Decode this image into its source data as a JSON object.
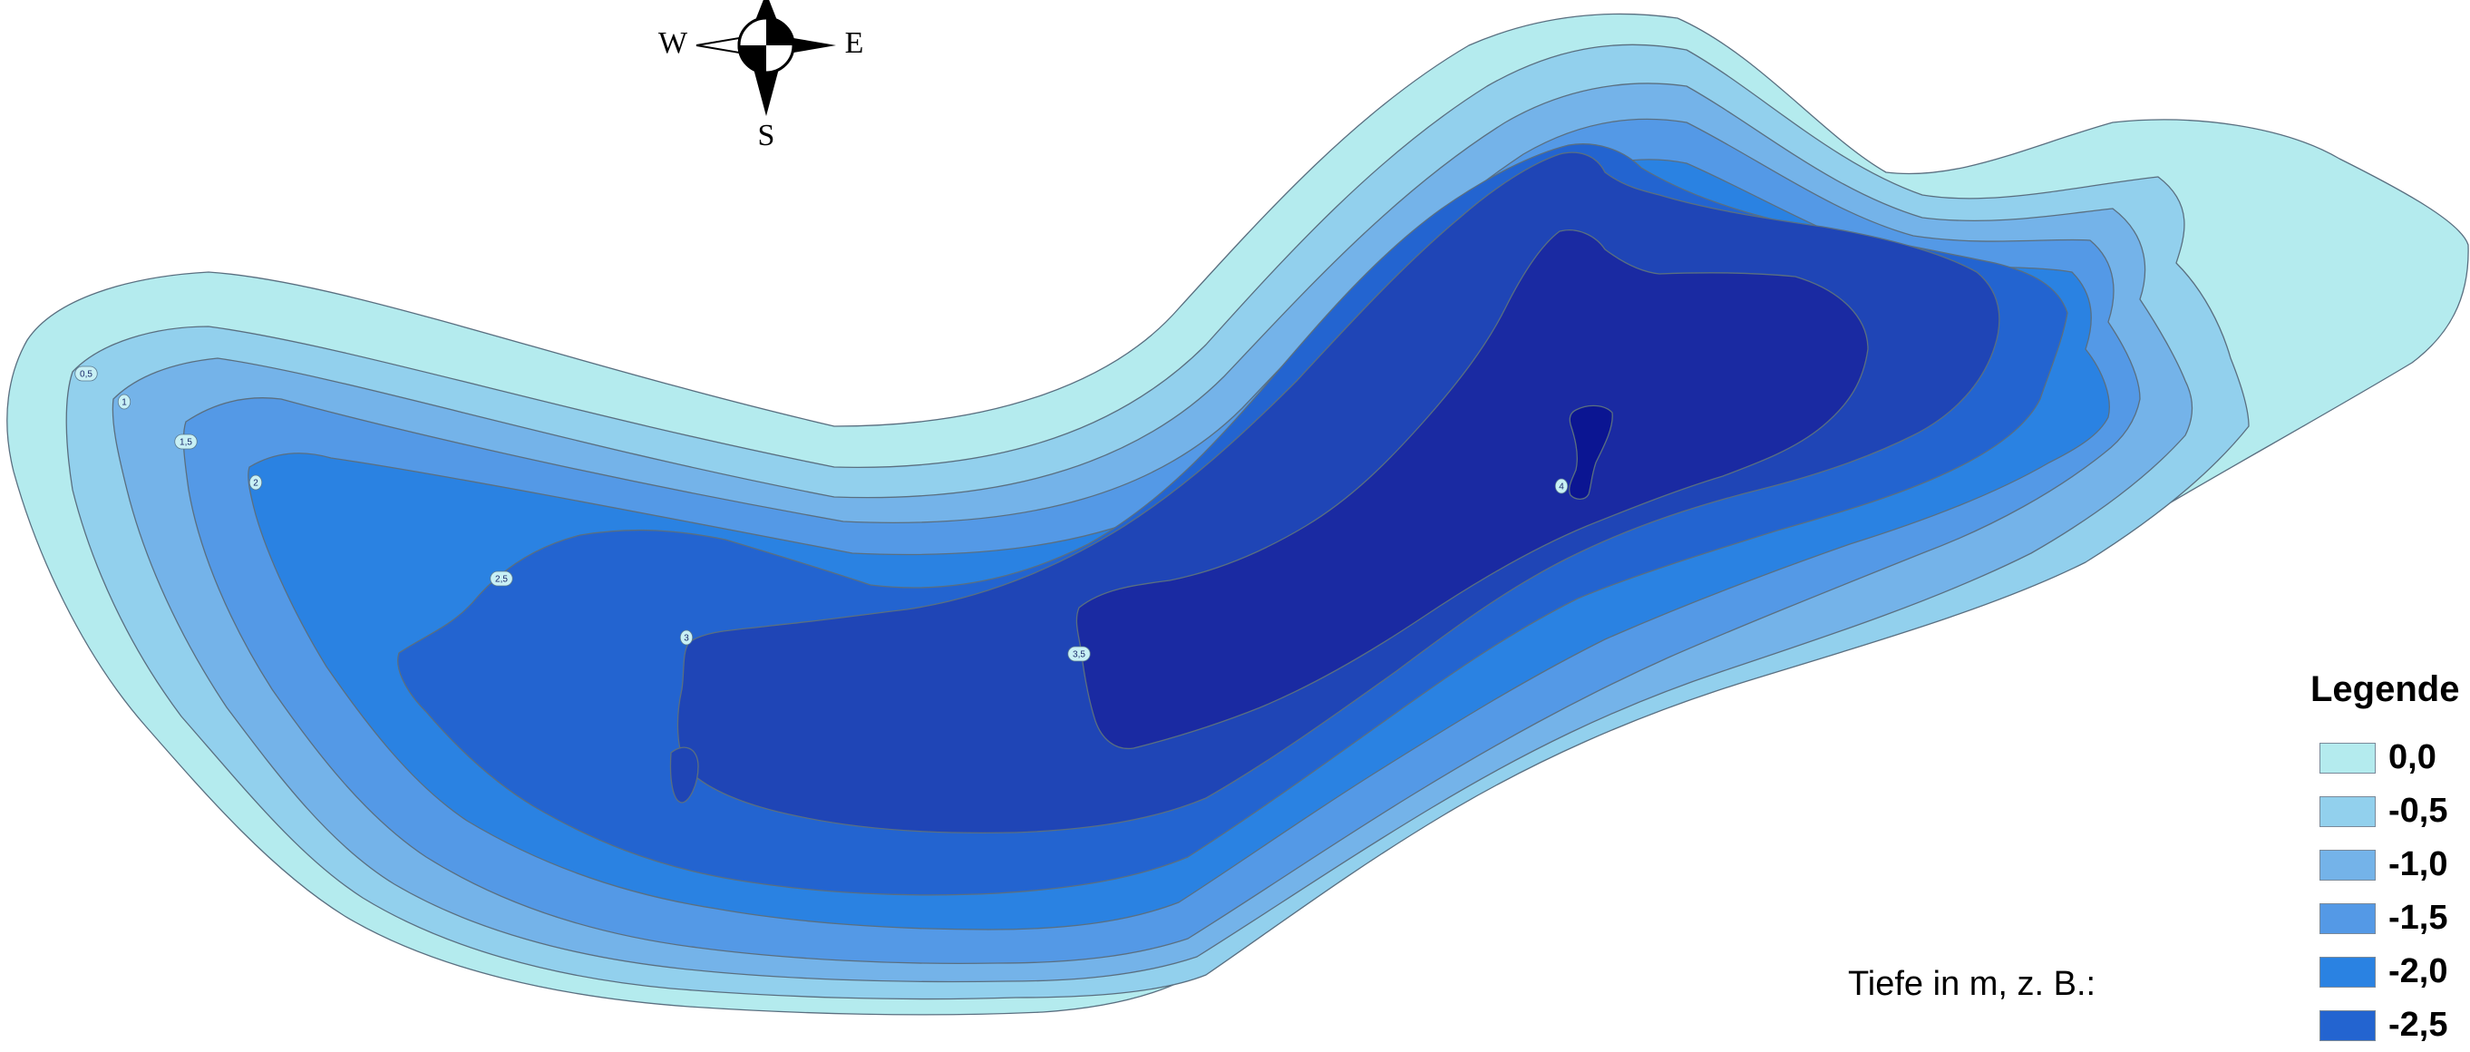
{
  "compass": {
    "west": "W",
    "east": "E",
    "south": "S",
    "icon": "compass-rose-icon"
  },
  "contour_labels": [
    "0,5",
    "1",
    "1,5",
    "2",
    "2,5",
    "3",
    "3,5",
    "4"
  ],
  "legend": {
    "title": "Legende",
    "items": [
      {
        "label": "0,0",
        "color": "#b4ebee"
      },
      {
        "label": "-0,5",
        "color": "#92d0ed"
      },
      {
        "label": "-1,0",
        "color": "#74b3e9"
      },
      {
        "label": "-1,5",
        "color": "#5499e6"
      },
      {
        "label": "-2,0",
        "color": "#2a82e2"
      },
      {
        "label": "-2,5",
        "color": "#2364d0"
      }
    ]
  },
  "depth_note": "Tiefe in m, z. B.:",
  "depth_colors": {
    "d0": "#b4ebee",
    "d05": "#92d0ed",
    "d10": "#74b3e9",
    "d15": "#5499e6",
    "d20": "#2a82e2",
    "d25": "#2364d0",
    "d30": "#1f45b6",
    "d35": "#1a2aa2",
    "d40": "#0b1592"
  }
}
